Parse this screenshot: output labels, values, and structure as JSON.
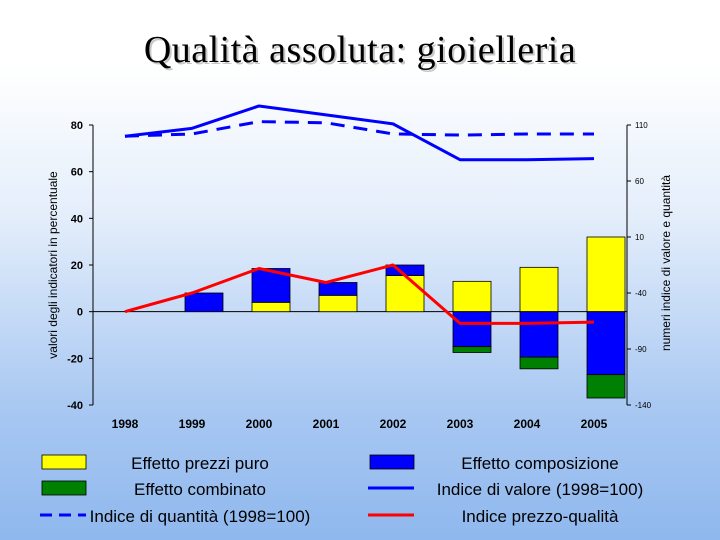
{
  "slide": {
    "title": "Qualità assoluta: gioielleria"
  },
  "chart_data": {
    "type": "bar",
    "title": "Qualità assoluta: gioielleria",
    "categories": [
      "1998",
      "1999",
      "2000",
      "2001",
      "2002",
      "2003",
      "2004",
      "2005"
    ],
    "ylabel": "valori degli indicatori in percentuale",
    "y2label": "numeri indice di valore e quantità",
    "ylim": [
      -40,
      80
    ],
    "yticks": [
      "80",
      "60",
      "40",
      "20",
      "0",
      "-20",
      "-40"
    ],
    "y2lim": [
      -140,
      110
    ],
    "y2ticks": [
      "110",
      "60",
      "10",
      "-40",
      "-90",
      "-140"
    ],
    "stacked": true,
    "bar_series": [
      {
        "name": "Effetto prezzi puro",
        "color": "#ffff00",
        "values": [
          0,
          0,
          4,
          7,
          15.5,
          13,
          19,
          32
        ]
      },
      {
        "name": "Effetto composizione",
        "color": "#0000ff",
        "values": [
          0,
          8,
          14.5,
          5.5,
          4.5,
          -15,
          -19.5,
          -27
        ]
      },
      {
        "name": "Effetto combinato",
        "color": "#008000",
        "values": [
          0,
          0,
          0,
          0,
          0,
          -2.5,
          -5,
          -10
        ]
      }
    ],
    "line_series": [
      {
        "name": "Indice di valore (1998=100)",
        "axis": "right",
        "color": "#0000ff",
        "dash": false,
        "values": [
          100,
          107,
          127,
          119,
          111,
          79,
          79,
          80
        ]
      },
      {
        "name": "Indice di quantità (1998=100)",
        "axis": "right",
        "color": "#0000ff",
        "dash": true,
        "values": [
          100,
          102,
          113,
          112,
          102,
          101,
          102,
          102
        ]
      },
      {
        "name": "Indice prezzo-qualità",
        "axis": "left",
        "color": "#ff0000",
        "dash": false,
        "values": [
          0,
          8,
          18.5,
          12.5,
          20,
          -5,
          -5,
          -4.5
        ]
      }
    ],
    "legend": [
      {
        "label": "Effetto prezzi puro",
        "kind": "box",
        "color": "#ffff00"
      },
      {
        "label": "Effetto composizione",
        "kind": "box",
        "color": "#0000ff"
      },
      {
        "label": "Effetto combinato",
        "kind": "box",
        "color": "#008000"
      },
      {
        "label": "Indice di valore (1998=100)",
        "kind": "line",
        "color": "#0000ff"
      },
      {
        "label": "Indice di quantità (1998=100)",
        "kind": "dash",
        "color": "#0000ff"
      },
      {
        "label": "Indice prezzo-qualità",
        "kind": "line",
        "color": "#ff0000"
      }
    ],
    "legend_position": "bottom"
  }
}
